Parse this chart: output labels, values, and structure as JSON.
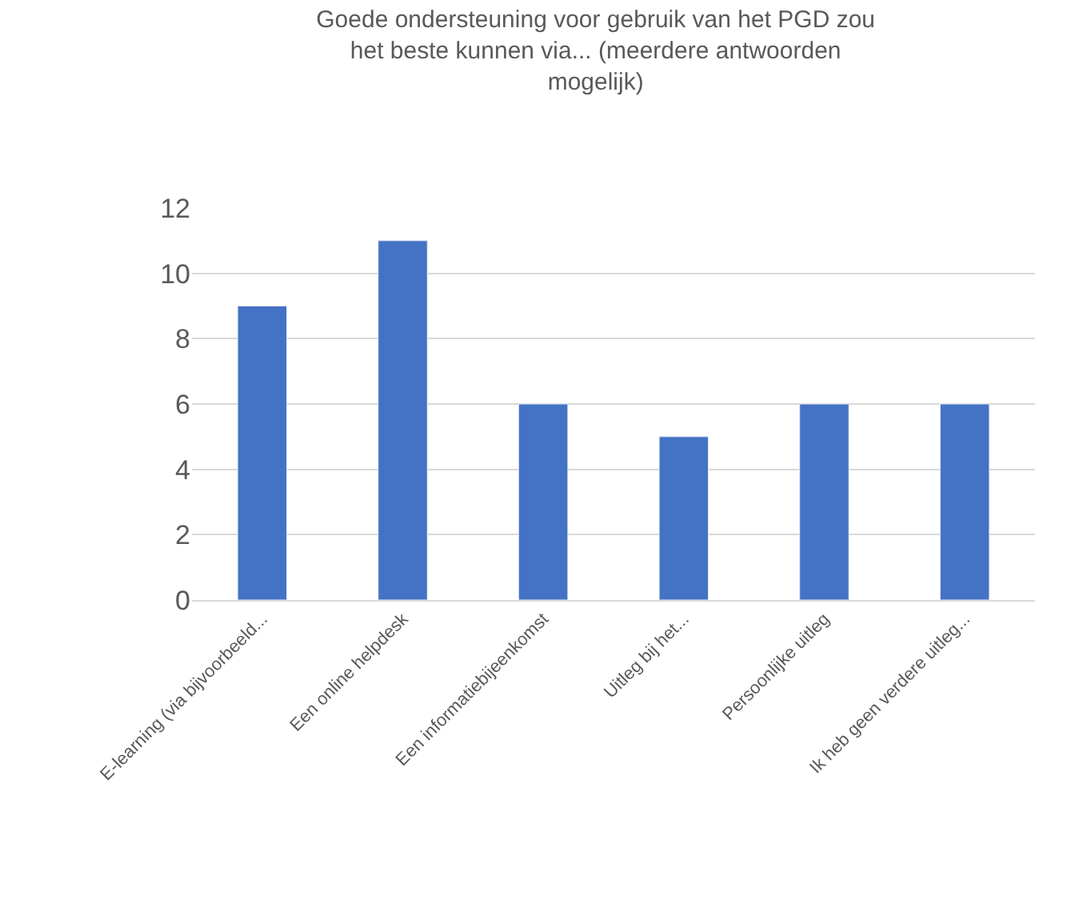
{
  "chart_data": {
    "type": "bar",
    "title": "Goede ondersteuning voor gebruik van het PGD zou het beste kunnen via... (meerdere antwoorden mogelijk)",
    "categories": [
      "E-learning (via bijvoorbeeld...",
      "Een online helpdesk",
      "Een informatiebijeenkomst",
      "Uitleg bij het...",
      "Persoonlijke uitleg",
      "Ik heb geen verdere uitleg..."
    ],
    "values": [
      9,
      11,
      6,
      5,
      6,
      6
    ],
    "color": "#4472c4",
    "ylim": [
      0,
      12
    ],
    "yticks": [
      0,
      2,
      4,
      6,
      8,
      10,
      12
    ],
    "grid": "y"
  }
}
